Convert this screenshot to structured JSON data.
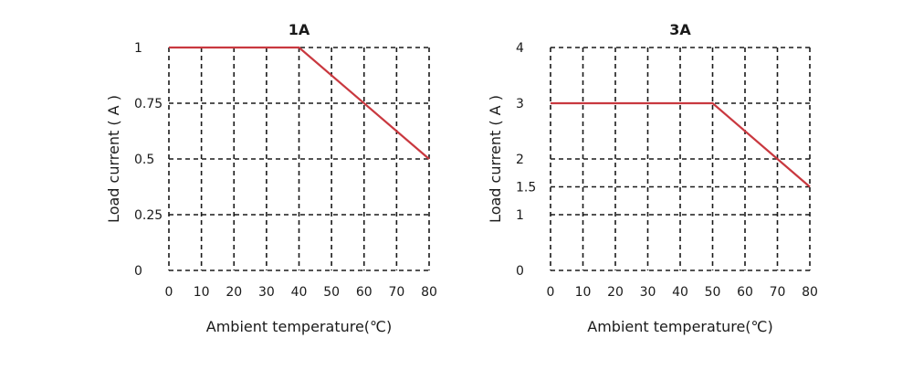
{
  "chart_data": [
    {
      "type": "line",
      "title": "1A",
      "xlabel": "Ambient temperature(℃)",
      "ylabel": "Load current ( A )",
      "xlim": [
        0,
        80
      ],
      "ylim": [
        0,
        1
      ],
      "x_ticks": [
        0,
        10,
        20,
        30,
        40,
        50,
        60,
        70,
        80
      ],
      "y_ticks": [
        0,
        0.25,
        0.5,
        0.75,
        1
      ],
      "x_tick_labels": [
        "0",
        "10",
        "20",
        "30",
        "40",
        "50",
        "60",
        "70",
        "80"
      ],
      "y_tick_labels": [
        "0",
        "0.25",
        "0.5",
        "0.75",
        "1"
      ],
      "grid": true,
      "series": [
        {
          "x": [
            0,
            40,
            80
          ],
          "y": [
            1,
            1,
            0.5
          ]
        }
      ],
      "colors": {
        "line": "#c9383f",
        "grid": "#1a1a1a"
      }
    },
    {
      "type": "line",
      "title": "3A",
      "xlabel": "Ambient temperature(℃)",
      "ylabel": "Load current ( A )",
      "xlim": [
        0,
        80
      ],
      "ylim": [
        0,
        4
      ],
      "x_ticks": [
        0,
        10,
        20,
        30,
        40,
        50,
        60,
        70,
        80
      ],
      "y_ticks": [
        0,
        1,
        1.5,
        2,
        3,
        4
      ],
      "x_tick_labels": [
        "0",
        "10",
        "20",
        "30",
        "40",
        "50",
        "60",
        "70",
        "80"
      ],
      "y_tick_labels": [
        "0",
        "1",
        "1.5",
        "2",
        "3",
        "4"
      ],
      "grid": true,
      "series": [
        {
          "x": [
            0,
            50,
            80
          ],
          "y": [
            3,
            3,
            1.5
          ]
        }
      ],
      "colors": {
        "line": "#c9383f",
        "grid": "#1a1a1a"
      }
    }
  ]
}
